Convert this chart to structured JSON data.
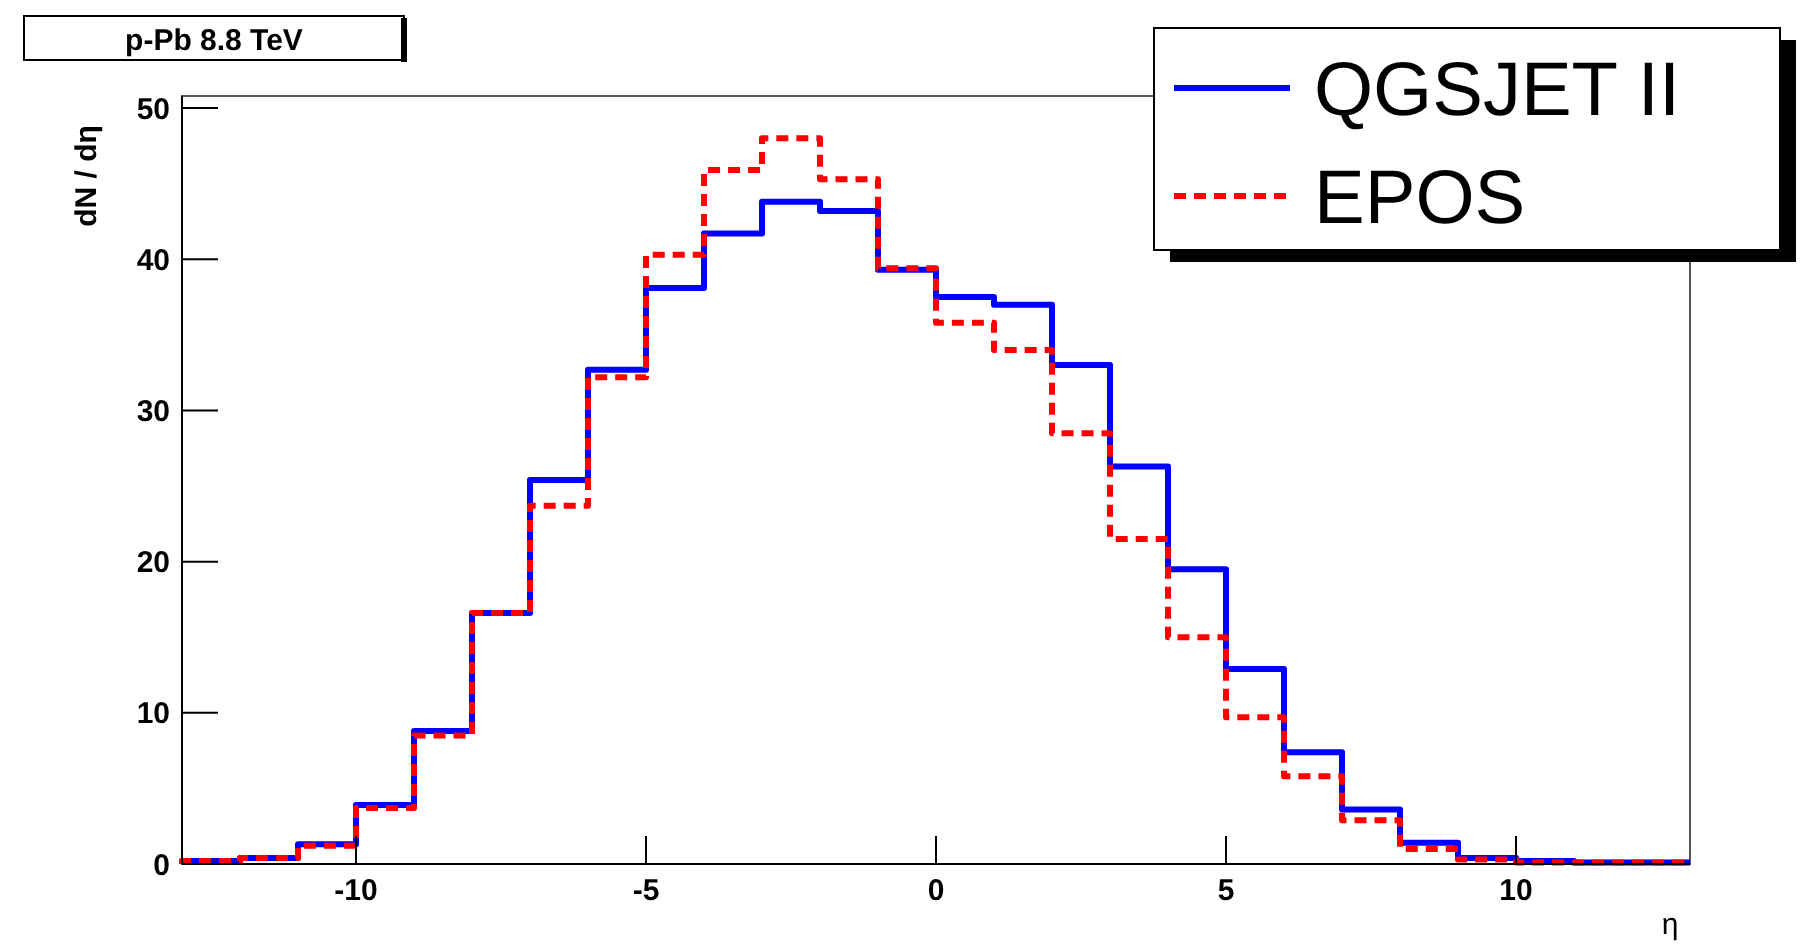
{
  "chart_data": {
    "type": "histogram",
    "title": "p-Pb 8.8 TeV",
    "xlabel": "η",
    "ylabel": "dN / dη",
    "bins": [
      -13,
      -12,
      -11,
      -10,
      -9,
      -8,
      -7,
      -6,
      -5,
      -4,
      -3,
      -2,
      -1,
      0,
      1,
      2,
      3,
      4,
      5,
      6,
      7,
      8,
      9,
      10,
      11,
      12,
      13
    ],
    "series": [
      {
        "name": "QGSJET II",
        "color": "#0000ff",
        "line_style": "solid",
        "values": [
          0.2,
          0.4,
          1.3,
          3.9,
          8.8,
          16.6,
          25.4,
          32.7,
          38.1,
          41.7,
          43.8,
          43.2,
          39.3,
          37.5,
          37.0,
          33.0,
          26.3,
          19.5,
          12.9,
          7.4,
          3.6,
          1.4,
          0.4,
          0.2,
          0.1,
          0.1
        ]
      },
      {
        "name": "EPOS",
        "color": "#ff0000",
        "line_style": "dashed",
        "values": [
          0.2,
          0.4,
          1.2,
          3.7,
          8.5,
          16.6,
          23.7,
          32.2,
          40.3,
          45.9,
          48.0,
          45.3,
          39.4,
          35.8,
          34.0,
          28.5,
          21.5,
          15.0,
          9.7,
          5.8,
          2.9,
          1.0,
          0.3,
          0.1,
          0.1,
          0.1
        ]
      }
    ],
    "xlim": [
      -13,
      13
    ],
    "xticks": [
      -10,
      -5,
      0,
      5,
      10
    ],
    "ylim": [
      0,
      50.8
    ],
    "yticks": [
      0,
      10,
      20,
      30,
      40,
      50
    ],
    "grid": false,
    "legend": "top right"
  }
}
